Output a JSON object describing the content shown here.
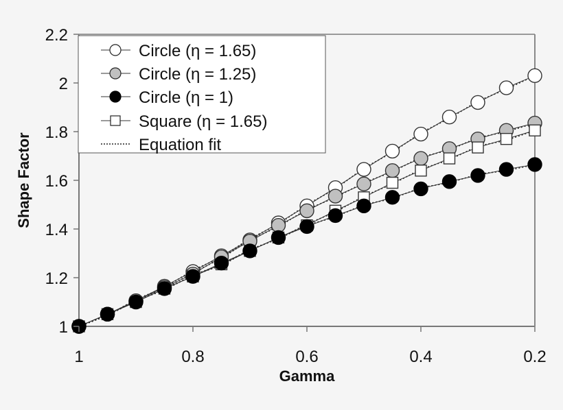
{
  "chart_data": {
    "type": "line",
    "title": "",
    "xlabel": "Gamma",
    "ylabel": "Shape Factor",
    "xlim": [
      1,
      0.2
    ],
    "ylim": [
      1,
      2.2
    ],
    "x_reversed": true,
    "xticks": [
      "1",
      "0.8",
      "0.6",
      "0.4",
      "0.2"
    ],
    "yticks": [
      "1",
      "1.2",
      "1.4",
      "1.6",
      "1.8",
      "2",
      "2.2"
    ],
    "grid": false,
    "legend_position": "upper-left",
    "x": [
      1.0,
      0.95,
      0.9,
      0.85,
      0.8,
      0.75,
      0.7,
      0.65,
      0.6,
      0.55,
      0.5,
      0.45,
      0.4,
      0.35,
      0.3,
      0.25,
      0.2
    ],
    "series": [
      {
        "name": "Circle (η = 1.65)",
        "marker": "open-circle",
        "fill": "#ffffff",
        "values": [
          1.0,
          1.05,
          1.105,
          1.165,
          1.225,
          1.29,
          1.355,
          1.425,
          1.495,
          1.57,
          1.645,
          1.72,
          1.79,
          1.86,
          1.92,
          1.98,
          2.03
        ]
      },
      {
        "name": "Circle (η = 1.25)",
        "marker": "gray-circle",
        "fill": "#c0c0c0",
        "values": [
          1.0,
          1.05,
          1.105,
          1.16,
          1.215,
          1.285,
          1.35,
          1.415,
          1.475,
          1.535,
          1.585,
          1.64,
          1.69,
          1.73,
          1.77,
          1.805,
          1.835
        ]
      },
      {
        "name": "Circle (η = 1)",
        "marker": "filled-circle",
        "fill": "#000000",
        "values": [
          1.0,
          1.05,
          1.1,
          1.155,
          1.205,
          1.26,
          1.31,
          1.365,
          1.41,
          1.455,
          1.495,
          1.53,
          1.565,
          1.595,
          1.62,
          1.645,
          1.665
        ]
      },
      {
        "name": "Square (η = 1.65)",
        "marker": "open-square",
        "fill": "#ffffff",
        "values": [
          1.0,
          1.05,
          1.1,
          1.155,
          1.205,
          1.255,
          1.31,
          1.365,
          1.415,
          1.475,
          1.53,
          1.59,
          1.64,
          1.69,
          1.735,
          1.77,
          1.805
        ]
      },
      {
        "name": "Equation fit",
        "marker": "none",
        "line": "dotted",
        "values": []
      }
    ]
  },
  "legend": {
    "items": [
      {
        "label": "Circle (η = 1.65)"
      },
      {
        "label": "Circle (η = 1.25)"
      },
      {
        "label": "Circle (η = 1)"
      },
      {
        "label": "Square (η = 1.65)"
      },
      {
        "label": "Equation fit"
      }
    ]
  },
  "axes": {
    "x_title": "Gamma",
    "y_title": "Shape Factor"
  }
}
